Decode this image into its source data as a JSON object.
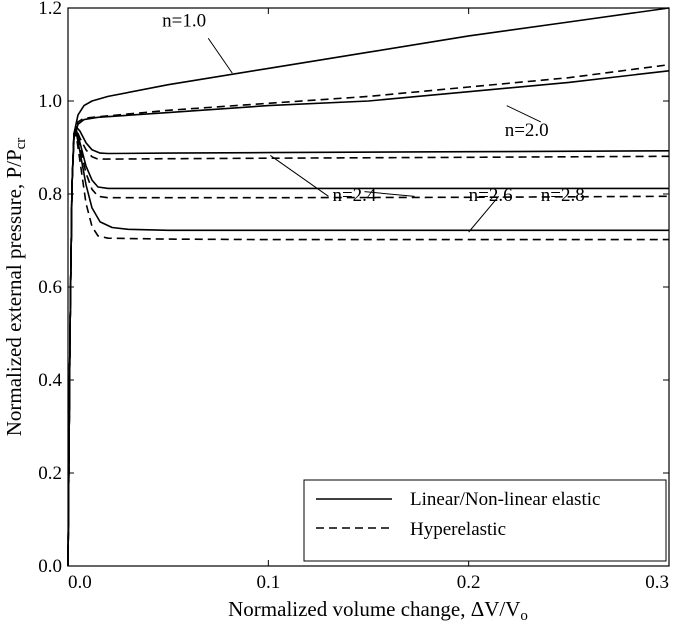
{
  "chart_data": {
    "type": "line",
    "xlabel": "Normalized volume change, ΔV/V",
    "xlabel_sub": "o",
    "ylabel": "Normalized external pressure, P/P",
    "ylabel_sub": "cr",
    "xlim": [
      0,
      0.3
    ],
    "ylim": [
      0,
      1.2
    ],
    "xticks": [
      0,
      0.1,
      0.2,
      0.3
    ],
    "xtick_labels": [
      "0.0",
      "0.1",
      "0.2",
      "0.3"
    ],
    "yticks": [
      0,
      0.2,
      0.4,
      0.6,
      0.8,
      1.0,
      1.2
    ],
    "ytick_labels": [
      "0.0",
      "0.2",
      "0.4",
      "0.6",
      "0.8",
      "1.0",
      "1.2"
    ],
    "grid": false,
    "legend_position": "bottom-right",
    "legend": [
      {
        "label": "Linear/Non-linear elastic",
        "style": "solid"
      },
      {
        "label": "Hyperelastic",
        "style": "dashed"
      }
    ],
    "series": [
      {
        "group": "n=1.0",
        "style": "solid",
        "x": [
          0,
          0.001,
          0.002,
          0.003,
          0.005,
          0.008,
          0.012,
          0.02,
          0.05,
          0.1,
          0.15,
          0.2,
          0.25,
          0.3
        ],
        "y": [
          0,
          0.5,
          0.82,
          0.93,
          0.97,
          0.99,
          1.0,
          1.01,
          1.035,
          1.07,
          1.105,
          1.14,
          1.17,
          1.2
        ]
      },
      {
        "group": "n=2.0",
        "style": "solid",
        "x": [
          0,
          0.001,
          0.002,
          0.003,
          0.005,
          0.008,
          0.015,
          0.05,
          0.1,
          0.15,
          0.2,
          0.25,
          0.3
        ],
        "y": [
          0,
          0.5,
          0.82,
          0.92,
          0.95,
          0.96,
          0.965,
          0.975,
          0.99,
          1.0,
          1.02,
          1.04,
          1.065
        ]
      },
      {
        "group": "n=2.0",
        "style": "dashed",
        "x": [
          0,
          0.001,
          0.002,
          0.003,
          0.005,
          0.008,
          0.015,
          0.05,
          0.1,
          0.15,
          0.2,
          0.25,
          0.3
        ],
        "y": [
          0,
          0.5,
          0.82,
          0.92,
          0.955,
          0.963,
          0.966,
          0.98,
          0.995,
          1.01,
          1.03,
          1.05,
          1.078
        ]
      },
      {
        "group": "n=2.4",
        "style": "solid",
        "x": [
          0,
          0.001,
          0.002,
          0.003,
          0.004,
          0.006,
          0.009,
          0.012,
          0.016,
          0.02,
          0.05,
          0.1,
          0.2,
          0.3
        ],
        "y": [
          0,
          0.5,
          0.82,
          0.93,
          0.945,
          0.935,
          0.91,
          0.895,
          0.888,
          0.887,
          0.888,
          0.889,
          0.891,
          0.893
        ]
      },
      {
        "group": "n=2.4",
        "style": "dashed",
        "x": [
          0,
          0.001,
          0.002,
          0.003,
          0.004,
          0.006,
          0.009,
          0.012,
          0.015,
          0.02,
          0.05,
          0.1,
          0.2,
          0.3
        ],
        "y": [
          0,
          0.5,
          0.82,
          0.93,
          0.94,
          0.92,
          0.895,
          0.88,
          0.875,
          0.875,
          0.876,
          0.877,
          0.879,
          0.881
        ]
      },
      {
        "group": "n=2.6",
        "style": "solid",
        "x": [
          0,
          0.001,
          0.002,
          0.003,
          0.004,
          0.006,
          0.009,
          0.012,
          0.015,
          0.02,
          0.05,
          0.1,
          0.2,
          0.3
        ],
        "y": [
          0,
          0.5,
          0.82,
          0.93,
          0.94,
          0.91,
          0.86,
          0.83,
          0.815,
          0.812,
          0.812,
          0.812,
          0.812,
          0.812
        ]
      },
      {
        "group": "n=2.6",
        "style": "dashed",
        "x": [
          0,
          0.001,
          0.002,
          0.003,
          0.004,
          0.006,
          0.009,
          0.012,
          0.015,
          0.02,
          0.05,
          0.1,
          0.2,
          0.3
        ],
        "y": [
          0,
          0.5,
          0.82,
          0.93,
          0.935,
          0.9,
          0.845,
          0.81,
          0.795,
          0.792,
          0.792,
          0.792,
          0.793,
          0.795
        ]
      },
      {
        "group": "n=2.8",
        "style": "solid",
        "x": [
          0,
          0.001,
          0.002,
          0.003,
          0.004,
          0.006,
          0.009,
          0.012,
          0.016,
          0.022,
          0.03,
          0.05,
          0.1,
          0.2,
          0.3
        ],
        "y": [
          0,
          0.5,
          0.82,
          0.93,
          0.935,
          0.89,
          0.82,
          0.77,
          0.74,
          0.728,
          0.724,
          0.722,
          0.722,
          0.722,
          0.722
        ]
      },
      {
        "group": "n=2.8",
        "style": "dashed",
        "x": [
          0,
          0.001,
          0.002,
          0.003,
          0.004,
          0.006,
          0.009,
          0.012,
          0.015,
          0.02,
          0.05,
          0.1,
          0.2,
          0.3
        ],
        "y": [
          0,
          0.5,
          0.82,
          0.93,
          0.93,
          0.87,
          0.78,
          0.73,
          0.71,
          0.705,
          0.703,
          0.702,
          0.702,
          0.702
        ]
      }
    ],
    "annotations": [
      {
        "text": "n=1.0",
        "label_x": 0.047,
        "label_y": 1.16,
        "arrow_from": [
          0.07,
          1.135
        ],
        "arrow_to": [
          0.082,
          1.06
        ]
      },
      {
        "text": "n=2.0",
        "label_x": 0.218,
        "label_y": 0.925,
        "arrow_from": [
          0.236,
          0.955
        ],
        "arrow_to": [
          0.219,
          0.99
        ]
      },
      {
        "text": "n=2.4",
        "label_x": 0.132,
        "label_y": 0.785,
        "arrow_from": [
          0.13,
          0.795
        ],
        "arrow_to": [
          0.101,
          0.883
        ]
      },
      {
        "text": "n=2.6",
        "label_x": 0.2,
        "label_y": 0.785,
        "arrow_from": [
          0.173,
          0.795
        ],
        "arrow_to": [
          0.148,
          0.805
        ]
      },
      {
        "text": "n=2.8",
        "label_x": 0.236,
        "label_y": 0.785,
        "arrow_from": [
          0.215,
          0.795
        ],
        "arrow_to": [
          0.2,
          0.718
        ]
      }
    ]
  }
}
